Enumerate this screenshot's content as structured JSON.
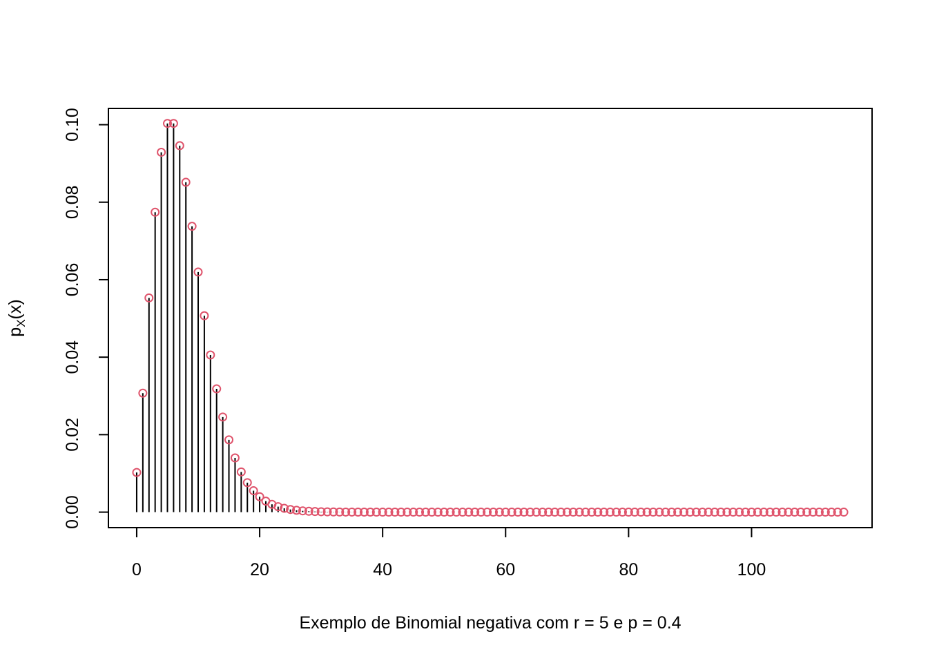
{
  "chart_data": {
    "type": "scatter",
    "xlabel": "Exemplo de Binomial negativa com  r = 5 e p = 0.4",
    "ylabel": {
      "base": "p",
      "subscript": "X",
      "suffix": "(x)"
    },
    "xlim": [
      -4.6,
      119.6
    ],
    "ylim": [
      -0.004,
      0.1042
    ],
    "xticks": [
      0,
      20,
      40,
      60,
      80,
      100
    ],
    "xtick_labels": [
      "0",
      "20",
      "40",
      "60",
      "80",
      "100"
    ],
    "yticks": [
      0.0,
      0.02,
      0.04,
      0.06,
      0.08,
      0.1
    ],
    "ytick_labels": [
      "0.00",
      "0.02",
      "0.04",
      "0.06",
      "0.08",
      "0.10"
    ],
    "grid": false,
    "legend": "none",
    "marker": "open-circle",
    "colors": {
      "points": "#DF536B",
      "stems": "#000000",
      "frame": "#000000"
    },
    "distribution": {
      "r": 5,
      "p": 0.4
    },
    "x": [
      0,
      1,
      2,
      3,
      4,
      5,
      6,
      7,
      8,
      9,
      10,
      11,
      12,
      13,
      14,
      15,
      16,
      17,
      18,
      19,
      20,
      21,
      22,
      23,
      24,
      25,
      26,
      27,
      28,
      29,
      30,
      31,
      32,
      33,
      34,
      35,
      36,
      37,
      38,
      39,
      40,
      41,
      42,
      43,
      44,
      45,
      46,
      47,
      48,
      49,
      50,
      51,
      52,
      53,
      54,
      55,
      56,
      57,
      58,
      59,
      60,
      61,
      62,
      63,
      64,
      65,
      66,
      67,
      68,
      69,
      70,
      71,
      72,
      73,
      74,
      75,
      76,
      77,
      78,
      79,
      80,
      81,
      82,
      83,
      84,
      85,
      86,
      87,
      88,
      89,
      90,
      91,
      92,
      93,
      94,
      95,
      96,
      97,
      98,
      99,
      100,
      101,
      102,
      103,
      104,
      105,
      106,
      107,
      108,
      109,
      110,
      111,
      112,
      113,
      114,
      115
    ],
    "values": [
      0.01024,
      0.03072,
      0.0553,
      0.07741,
      0.09289,
      0.10033,
      0.10033,
      0.09459,
      0.08514,
      0.07378,
      0.06197,
      0.0507,
      0.04056,
      0.03182,
      0.02455,
      0.01866,
      0.014,
      0.01038,
      0.00761,
      0.00553,
      0.00398,
      0.00284,
      0.00202,
      0.00142,
      0.00099,
      0.00069,
      0.00048,
      0.00033,
      0.00023,
      0.00016,
      0.00011,
      7e-05,
      5e-05,
      3e-05,
      2e-05,
      2e-05,
      1e-05,
      1e-05,
      1e-05,
      0,
      0,
      0,
      0,
      0,
      0,
      0,
      0,
      0,
      0,
      0,
      0,
      0,
      0,
      0,
      0,
      0,
      0,
      0,
      0,
      0,
      0,
      0,
      0,
      0,
      0,
      0,
      0,
      0,
      0,
      0,
      0,
      0,
      0,
      0,
      0,
      0,
      0,
      0,
      0,
      0,
      0,
      0,
      0,
      0,
      0,
      0,
      0,
      0,
      0,
      0,
      0,
      0,
      0,
      0,
      0,
      0,
      0,
      0,
      0,
      0,
      0,
      0,
      0,
      0,
      0,
      0,
      0,
      0,
      0,
      0,
      0,
      0,
      0,
      0,
      0,
      0
    ]
  }
}
